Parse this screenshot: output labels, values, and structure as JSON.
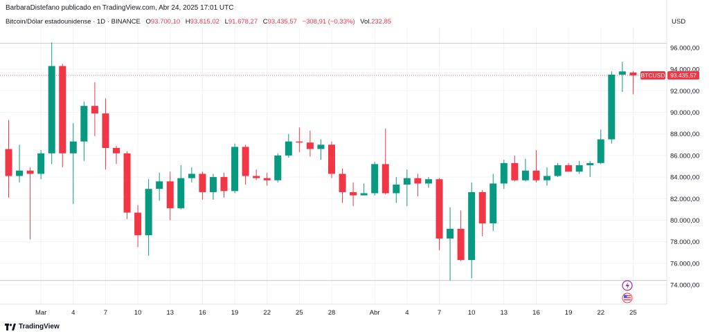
{
  "header": {
    "publisher_line": "BarbaraDistefano publicado en TradingView.com, Abr 24, 2025 17:01 UTC",
    "symbol_title": "Bitcoin/Dólar estadounidense · 1D · BINANCE",
    "ohlc": {
      "o_label": "O",
      "o_value": "93.700,10",
      "h_label": "H",
      "h_value": "93.815,02",
      "l_label": "L",
      "l_value": "91.678,27",
      "c_label": "C",
      "c_value": "93.435,57",
      "change": "−308,91 (−0,33%)",
      "vol_label": "Vol.",
      "vol_value": "232,85"
    },
    "currency": "USD"
  },
  "price_tag": {
    "symbol": "BTCUSD",
    "price": "93.435,57"
  },
  "brand": "TradingView",
  "colors": {
    "up": "#089981",
    "down": "#f23645",
    "grid": "#f0f3fa",
    "axis_text": "#131722"
  },
  "chart_data": {
    "type": "candlestick",
    "symbol": "BTCUSD",
    "interval": "1D",
    "ylim": [
      72000,
      97500
    ],
    "y_ticks": [
      {
        "value": 74000,
        "label": "74.000,00"
      },
      {
        "value": 76000,
        "label": "76.000,00"
      },
      {
        "value": 78000,
        "label": "78.000,00"
      },
      {
        "value": 80000,
        "label": "80.000,00"
      },
      {
        "value": 82000,
        "label": "82.000,00"
      },
      {
        "value": 84000,
        "label": "84.000,00"
      },
      {
        "value": 86000,
        "label": "86.000,00"
      },
      {
        "value": 88000,
        "label": "88.000,00"
      },
      {
        "value": 90000,
        "label": "90.000,00"
      },
      {
        "value": 92000,
        "label": "92.000,00"
      },
      {
        "value": 94000,
        "label": "94.000,00"
      },
      {
        "value": 96000,
        "label": "96.000,00"
      }
    ],
    "x_ticks": [
      {
        "index": 3,
        "label": "Mar"
      },
      {
        "index": 6,
        "label": "4"
      },
      {
        "index": 9,
        "label": "7"
      },
      {
        "index": 12,
        "label": "10"
      },
      {
        "index": 15,
        "label": "13"
      },
      {
        "index": 18,
        "label": "16"
      },
      {
        "index": 21,
        "label": "19"
      },
      {
        "index": 24,
        "label": "22"
      },
      {
        "index": 27,
        "label": "25"
      },
      {
        "index": 30,
        "label": "28"
      },
      {
        "index": 34,
        "label": "Abr"
      },
      {
        "index": 37,
        "label": "4"
      },
      {
        "index": 40,
        "label": "7"
      },
      {
        "index": 43,
        "label": "10"
      },
      {
        "index": 46,
        "label": "13"
      },
      {
        "index": 49,
        "label": "16"
      },
      {
        "index": 52,
        "label": "19"
      },
      {
        "index": 55,
        "label": "22"
      },
      {
        "index": 58,
        "label": "25"
      }
    ],
    "hlines": [
      96400,
      74400
    ],
    "last_price": 93435.57,
    "candles": [
      {
        "o": 86600,
        "h": 89300,
        "l": 82100,
        "c": 84100
      },
      {
        "o": 84100,
        "h": 87000,
        "l": 83500,
        "c": 84600
      },
      {
        "o": 84600,
        "h": 84900,
        "l": 78200,
        "c": 84300
      },
      {
        "o": 84300,
        "h": 86500,
        "l": 83800,
        "c": 86200
      },
      {
        "o": 86200,
        "h": 96500,
        "l": 85200,
        "c": 94300
      },
      {
        "o": 94300,
        "h": 94500,
        "l": 84900,
        "c": 86200
      },
      {
        "o": 86200,
        "h": 89000,
        "l": 81500,
        "c": 87300
      },
      {
        "o": 87300,
        "h": 91000,
        "l": 85500,
        "c": 90600
      },
      {
        "o": 90600,
        "h": 92800,
        "l": 87800,
        "c": 89900
      },
      {
        "o": 89900,
        "h": 91300,
        "l": 84700,
        "c": 86700
      },
      {
        "o": 86700,
        "h": 86900,
        "l": 85200,
        "c": 86200
      },
      {
        "o": 86200,
        "h": 86400,
        "l": 80100,
        "c": 80700
      },
      {
        "o": 80700,
        "h": 81400,
        "l": 77500,
        "c": 78600
      },
      {
        "o": 78600,
        "h": 83800,
        "l": 76700,
        "c": 82900
      },
      {
        "o": 82900,
        "h": 84400,
        "l": 81800,
        "c": 83600
      },
      {
        "o": 83600,
        "h": 84500,
        "l": 80000,
        "c": 81100
      },
      {
        "o": 81100,
        "h": 85100,
        "l": 81000,
        "c": 83900
      },
      {
        "o": 83900,
        "h": 84900,
        "l": 83500,
        "c": 84300
      },
      {
        "o": 84300,
        "h": 84500,
        "l": 81900,
        "c": 82600
      },
      {
        "o": 82600,
        "h": 84300,
        "l": 81900,
        "c": 84000
      },
      {
        "o": 84000,
        "h": 84400,
        "l": 82100,
        "c": 82700
      },
      {
        "o": 82700,
        "h": 87100,
        "l": 82500,
        "c": 86800
      },
      {
        "o": 86800,
        "h": 87000,
        "l": 83300,
        "c": 84100
      },
      {
        "o": 84100,
        "h": 84700,
        "l": 83700,
        "c": 83900
      },
      {
        "o": 83900,
        "h": 84400,
        "l": 83200,
        "c": 83700
      },
      {
        "o": 83700,
        "h": 86200,
        "l": 83500,
        "c": 86000
      },
      {
        "o": 86000,
        "h": 88000,
        "l": 85800,
        "c": 87300
      },
      {
        "o": 87300,
        "h": 88600,
        "l": 86300,
        "c": 87200
      },
      {
        "o": 87200,
        "h": 88300,
        "l": 85900,
        "c": 86600
      },
      {
        "o": 86600,
        "h": 87500,
        "l": 85600,
        "c": 87000
      },
      {
        "o": 87000,
        "h": 87300,
        "l": 83900,
        "c": 84300
      },
      {
        "o": 84300,
        "h": 84800,
        "l": 81600,
        "c": 82600
      },
      {
        "o": 82600,
        "h": 83500,
        "l": 81300,
        "c": 82300
      },
      {
        "o": 82300,
        "h": 83400,
        "l": 82300,
        "c": 82500
      },
      {
        "o": 82500,
        "h": 85400,
        "l": 82300,
        "c": 85200
      },
      {
        "o": 85200,
        "h": 88500,
        "l": 82400,
        "c": 82500
      },
      {
        "o": 82500,
        "h": 84000,
        "l": 81600,
        "c": 83300
      },
      {
        "o": 83300,
        "h": 84700,
        "l": 81300,
        "c": 83900
      },
      {
        "o": 83900,
        "h": 84300,
        "l": 82200,
        "c": 83400
      },
      {
        "o": 83400,
        "h": 84000,
        "l": 83000,
        "c": 83800
      },
      {
        "o": 83800,
        "h": 83900,
        "l": 77200,
        "c": 78300
      },
      {
        "o": 78300,
        "h": 81200,
        "l": 74400,
        "c": 79200
      },
      {
        "o": 79200,
        "h": 80900,
        "l": 76200,
        "c": 76300
      },
      {
        "o": 76300,
        "h": 83500,
        "l": 74600,
        "c": 82600
      },
      {
        "o": 82600,
        "h": 82800,
        "l": 78500,
        "c": 79700
      },
      {
        "o": 79700,
        "h": 84300,
        "l": 79000,
        "c": 83400
      },
      {
        "o": 83400,
        "h": 85600,
        "l": 82900,
        "c": 85300
      },
      {
        "o": 85300,
        "h": 86000,
        "l": 83600,
        "c": 83700
      },
      {
        "o": 83700,
        "h": 85700,
        "l": 83600,
        "c": 84600
      },
      {
        "o": 84600,
        "h": 86500,
        "l": 83500,
        "c": 83700
      },
      {
        "o": 83700,
        "h": 84900,
        "l": 83200,
        "c": 84100
      },
      {
        "o": 84100,
        "h": 85300,
        "l": 84000,
        "c": 85100
      },
      {
        "o": 85100,
        "h": 85300,
        "l": 84500,
        "c": 84500
      },
      {
        "o": 84500,
        "h": 85500,
        "l": 84300,
        "c": 85100
      },
      {
        "o": 85100,
        "h": 85500,
        "l": 84000,
        "c": 85300
      },
      {
        "o": 85300,
        "h": 88400,
        "l": 85200,
        "c": 87500
      },
      {
        "o": 87500,
        "h": 93800,
        "l": 87100,
        "c": 93500
      },
      {
        "o": 93500,
        "h": 94700,
        "l": 91900,
        "c": 93800
      },
      {
        "o": 93700,
        "h": 93815,
        "l": 91678,
        "c": 93436
      }
    ]
  }
}
